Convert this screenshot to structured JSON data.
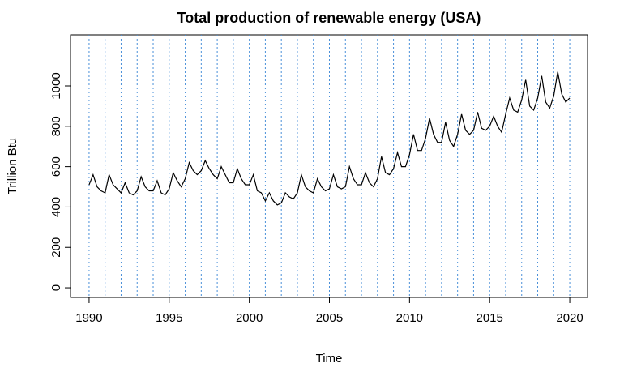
{
  "chart_data": {
    "type": "line",
    "title": "Total production of renewable energy (USA)",
    "x_label": "Time",
    "y_label": "Trillion Btu",
    "x": [
      1990,
      1990.25,
      1990.5,
      1990.75,
      1991,
      1991.25,
      1991.5,
      1991.75,
      1992,
      1992.25,
      1992.5,
      1992.75,
      1993,
      1993.25,
      1993.5,
      1993.75,
      1994,
      1994.25,
      1994.5,
      1994.75,
      1995,
      1995.25,
      1995.5,
      1995.75,
      1996,
      1996.25,
      1996.5,
      1996.75,
      1997,
      1997.25,
      1997.5,
      1997.75,
      1998,
      1998.25,
      1998.5,
      1998.75,
      1999,
      1999.25,
      1999.5,
      1999.75,
      2000,
      2000.25,
      2000.5,
      2000.75,
      2001,
      2001.25,
      2001.5,
      2001.75,
      2002,
      2002.25,
      2002.5,
      2002.75,
      2003,
      2003.25,
      2003.5,
      2003.75,
      2004,
      2004.25,
      2004.5,
      2004.75,
      2005,
      2005.25,
      2005.5,
      2005.75,
      2006,
      2006.25,
      2006.5,
      2006.75,
      2007,
      2007.25,
      2007.5,
      2007.75,
      2008,
      2008.25,
      2008.5,
      2008.75,
      2009,
      2009.25,
      2009.5,
      2009.75,
      2010,
      2010.25,
      2010.5,
      2010.75,
      2011,
      2011.25,
      2011.5,
      2011.75,
      2012,
      2012.25,
      2012.5,
      2012.75,
      2013,
      2013.25,
      2013.5,
      2013.75,
      2014,
      2014.25,
      2014.5,
      2014.75,
      2015,
      2015.25,
      2015.5,
      2015.75,
      2016,
      2016.25,
      2016.5,
      2016.75,
      2017,
      2017.25,
      2017.5,
      2017.75,
      2018,
      2018.25,
      2018.5,
      2018.75,
      2019,
      2019.25,
      2019.5,
      2019.75,
      2020
    ],
    "series": [
      {
        "color": "#000000",
        "values": [
          510,
          560,
          500,
          480,
          470,
          560,
          510,
          490,
          470,
          520,
          470,
          460,
          480,
          550,
          500,
          480,
          480,
          530,
          470,
          460,
          490,
          570,
          530,
          500,
          540,
          620,
          580,
          560,
          580,
          630,
          590,
          560,
          540,
          600,
          560,
          520,
          520,
          590,
          540,
          510,
          510,
          560,
          480,
          470,
          430,
          470,
          430,
          410,
          420,
          470,
          450,
          440,
          470,
          560,
          500,
          480,
          470,
          540,
          500,
          480,
          490,
          560,
          500,
          490,
          500,
          600,
          540,
          510,
          510,
          570,
          520,
          500,
          540,
          650,
          570,
          560,
          590,
          670,
          600,
          600,
          660,
          760,
          680,
          680,
          740,
          840,
          760,
          720,
          720,
          820,
          730,
          700,
          760,
          860,
          780,
          760,
          780,
          870,
          790,
          780,
          800,
          850,
          800,
          770,
          860,
          940,
          880,
          870,
          930,
          1030,
          900,
          880,
          940,
          1050,
          920,
          890,
          950,
          1070,
          960,
          920,
          940
        ]
      }
    ],
    "xlim": [
      1988.84,
      2021.11
    ],
    "xticks": [
      1990,
      1995,
      2000,
      2005,
      2010,
      2015,
      2020
    ],
    "ylim": [
      -48,
      1253
    ],
    "yticks": [
      0,
      200,
      400,
      600,
      800,
      1000
    ],
    "year_lines": [
      1990,
      1991,
      1992,
      1993,
      1994,
      1995,
      1996,
      1997,
      1998,
      1999,
      2000,
      2001,
      2002,
      2003,
      2004,
      2005,
      2006,
      2007,
      2008,
      2009,
      2010,
      2011,
      2012,
      2013,
      2014,
      2015,
      2016,
      2017,
      2018,
      2019,
      2020
    ],
    "year_line_color": "#4a90d9"
  }
}
